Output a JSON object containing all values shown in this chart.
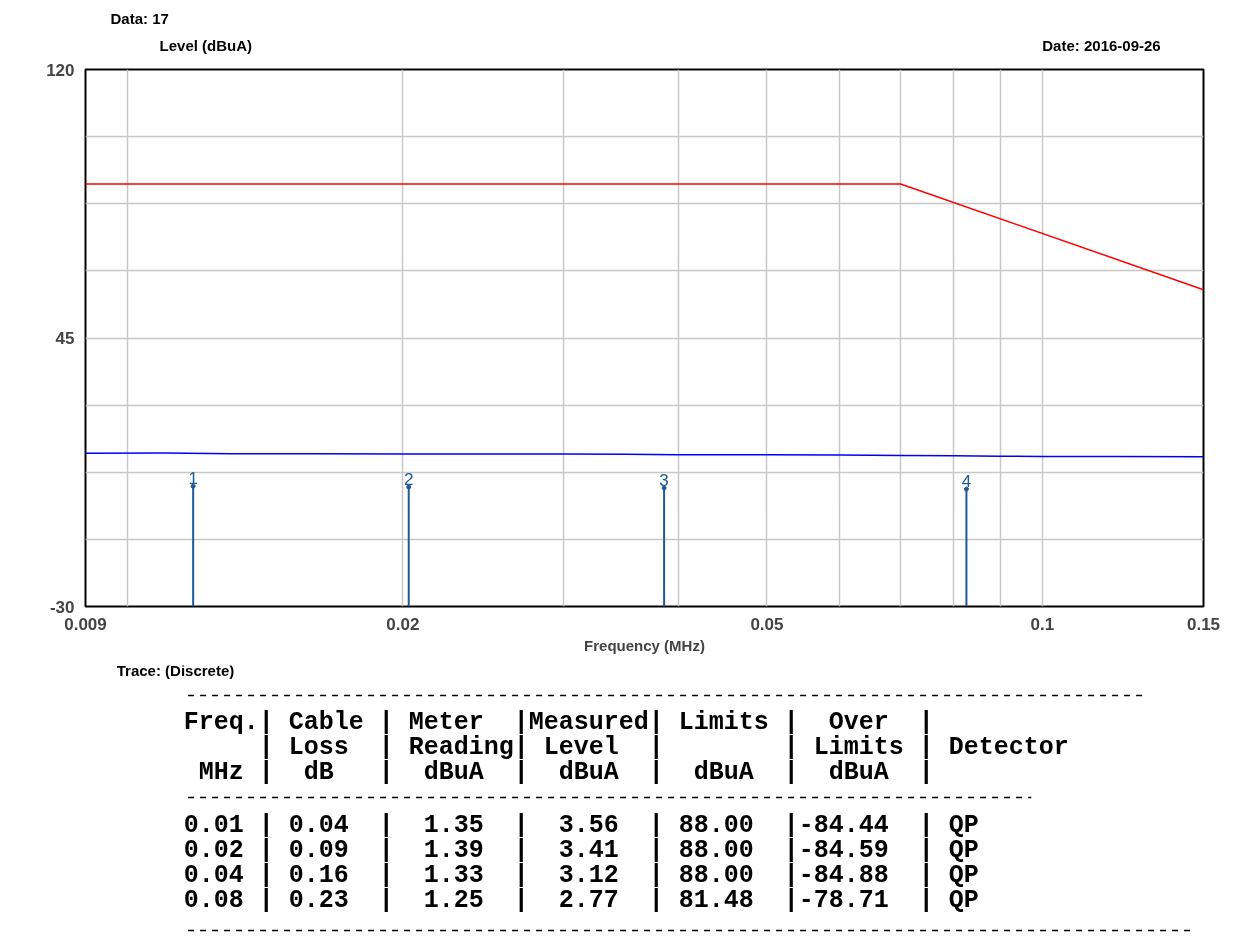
{
  "chart_data": {
    "type": "line",
    "title": "Data: 17",
    "xlabel": "Frequency (MHz)",
    "ylabel": "Level (dBuA)",
    "log": "x",
    "grid": true,
    "xlim": [
      0.009,
      0.15
    ],
    "ylim": [
      -30,
      120
    ],
    "xticks": [
      0.009,
      {
        "value": 0.01,
        "label": null
      },
      0.02,
      {
        "value": 0.03,
        "label": null
      },
      {
        "value": 0.04,
        "label": null
      },
      0.05,
      {
        "value": 0.06,
        "label": null
      },
      {
        "value": 0.07,
        "label": null
      },
      {
        "value": 0.08,
        "label": null
      },
      {
        "value": 0.09,
        "label": null
      },
      0.1,
      0.15
    ],
    "yticks": [
      -30,
      {
        "value": -11.25,
        "label": null
      },
      {
        "value": 7.5,
        "label": null
      },
      {
        "value": 26.25,
        "label": null
      },
      45,
      {
        "value": 63.75,
        "label": null
      },
      {
        "value": 82.5,
        "label": null
      },
      {
        "value": 101.25,
        "label": null
      },
      120
    ],
    "series": [
      {
        "color": "#ff0000",
        "x": [
          0.009,
          0.07,
          0.15
        ],
        "values": [
          88,
          88,
          58.5
        ]
      },
      {
        "color": "#0000ff",
        "x": [
          0.009,
          0.011,
          0.013,
          0.016,
          0.02,
          0.025,
          0.03,
          0.035,
          0.04,
          0.05,
          0.06,
          0.07,
          0.08,
          0.09,
          0.1,
          0.12,
          0.15
        ],
        "values": [
          12.8,
          12.9,
          12.7,
          12.7,
          12.6,
          12.6,
          12.6,
          12.5,
          12.4,
          12.4,
          12.3,
          12.2,
          12.1,
          12.0,
          11.9,
          11.9,
          11.8
        ]
      },
      {
        "type": "lollipop",
        "color": "#1f5a96",
        "marker": "circle",
        "x": [
          0.0118,
          0.0203,
          0.0386,
          0.0826
        ],
        "values": [
          3.6,
          3.4,
          3.1,
          2.8
        ]
      }
    ],
    "annotations": [
      "Date: 2016-09-26",
      "Trace: (Discrete)",
      "Freq.| Cable | Meter  |Measured| Limits |  Over  |",
      "     | Loss  | Reading| Level  |        | Limits | Detector",
      " MHz |  dB   |  dBuA  |  dBuA  |  dBuA  |  dBuA  |",
      "0.01 | 0.04  |  1.35  |  3.56  | 88.00  |-84.44  | QP",
      "0.02 | 0.09  |  1.39  |  3.41  | 88.00  |-84.59  | QP",
      "0.04 | 0.16  |  1.33  |  3.12  | 88.00  |-84.88  | QP",
      "0.08 | 0.23  |  1.25  |  2.77  | 81.48  |-78.71  | QP",
      {
        "text": "1",
        "x": 0.0118,
        "y": 3.6
      },
      {
        "text": "2",
        "x": 0.0203,
        "y": 3.4
      },
      {
        "text": "3",
        "x": 0.0386,
        "y": 3.1
      },
      {
        "text": "4",
        "x": 0.0826,
        "y": 2.8
      }
    ]
  }
}
